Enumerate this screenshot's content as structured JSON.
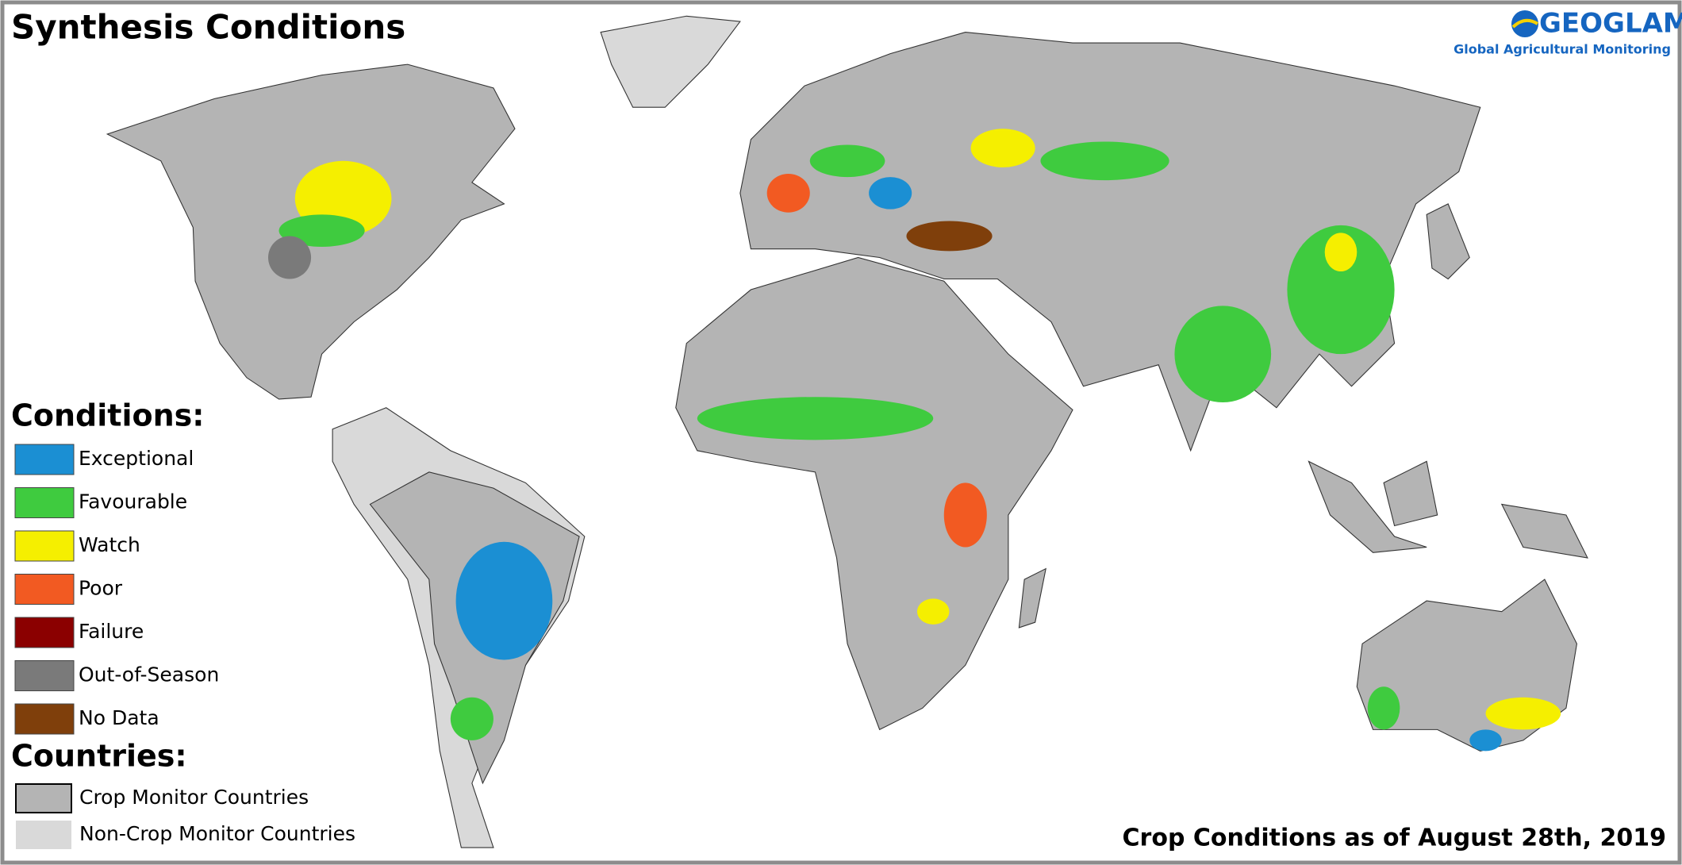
{
  "title": "Synthesis Conditions",
  "logo": {
    "name": "GEOGLAM",
    "tagline": "Global Agricultural Monitoring"
  },
  "legend": {
    "conditions": {
      "heading": "Conditions:",
      "items": [
        {
          "label": "Exceptional",
          "color": "#1b8fd3"
        },
        {
          "label": "Favourable",
          "color": "#3fcb3f"
        },
        {
          "label": "Watch",
          "color": "#f5ef00"
        },
        {
          "label": "Poor",
          "color": "#f25a22"
        },
        {
          "label": "Failure",
          "color": "#8b0000"
        },
        {
          "label": "Out-of-Season",
          "color": "#7a7a7a"
        },
        {
          "label": "No Data",
          "color": "#7f3f0b"
        }
      ]
    },
    "countries": {
      "heading": "Countries:",
      "items": [
        {
          "label": "Crop Monitor Countries",
          "color": "#b4b4b4"
        },
        {
          "label": "Non-Crop Monitor Countries",
          "color": "#d9d9d9"
        }
      ]
    }
  },
  "footer": "Crop Conditions as of August 28th, 2019"
}
